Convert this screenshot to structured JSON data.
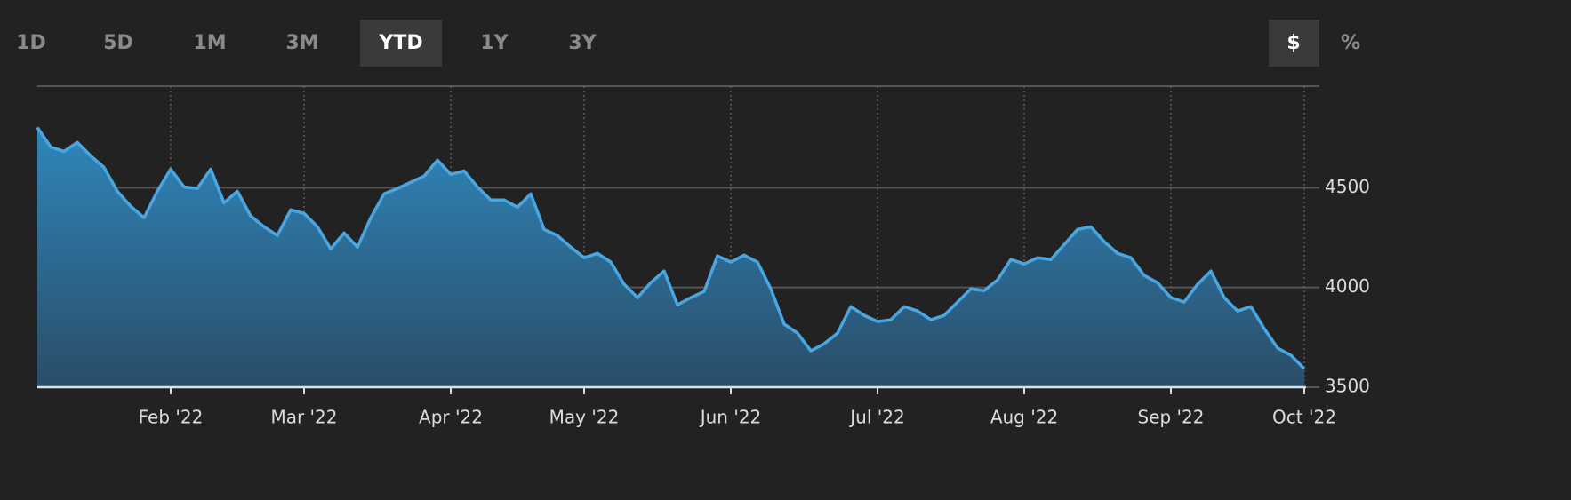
{
  "ui": {
    "range_buttons": [
      "1D",
      "5D",
      "1M",
      "3M",
      "YTD",
      "1Y",
      "3Y"
    ],
    "selected_range": 4,
    "unit_buttons": [
      "$",
      "%"
    ],
    "selected_unit": 0
  },
  "chart_data": {
    "type": "area",
    "color": "#49a6e0",
    "grid": true,
    "ylim": [
      3500,
      5000
    ],
    "yticks": [
      3500,
      4000,
      4500
    ],
    "categories": [
      null,
      null,
      null,
      null,
      null,
      null,
      null,
      null,
      null,
      null,
      "Feb '22",
      null,
      null,
      null,
      null,
      null,
      null,
      null,
      null,
      null,
      "Mar '22",
      null,
      null,
      null,
      null,
      null,
      null,
      null,
      null,
      null,
      null,
      "Apr '22",
      null,
      null,
      null,
      null,
      null,
      null,
      null,
      null,
      null,
      "May '22",
      null,
      null,
      null,
      null,
      null,
      null,
      null,
      null,
      null,
      null,
      "Jun '22",
      null,
      null,
      null,
      null,
      null,
      null,
      null,
      null,
      null,
      null,
      "Jul '22",
      null,
      null,
      null,
      null,
      null,
      null,
      null,
      null,
      null,
      null,
      "Aug '22",
      null,
      null,
      null,
      null,
      null,
      null,
      null,
      null,
      null,
      null,
      "Sep '22",
      null,
      null,
      null,
      null,
      null,
      null,
      null,
      null,
      null,
      "Oct '22"
    ],
    "values": [
      4802,
      4704,
      4682,
      4727,
      4660,
      4602,
      4482,
      4407,
      4349,
      4482,
      4593,
      4504,
      4496,
      4593,
      4424,
      4482,
      4358,
      4304,
      4260,
      4389,
      4371,
      4304,
      4193,
      4273,
      4202,
      4349,
      4469,
      4496,
      4527,
      4558,
      4638,
      4567,
      4584,
      4504,
      4438,
      4438,
      4402,
      4469,
      4291,
      4260,
      4202,
      4149,
      4171,
      4127,
      4016,
      3949,
      4024,
      4082,
      3913,
      3949,
      3980,
      4158,
      4127,
      4162,
      4127,
      3993,
      3816,
      3771,
      3682,
      3718,
      3771,
      3904,
      3860,
      3829,
      3838,
      3904,
      3882,
      3838,
      3860,
      3927,
      3993,
      3984,
      4038,
      4140,
      4118,
      4149,
      4140,
      4215,
      4291,
      4304,
      4229,
      4171,
      4149,
      4060,
      4024,
      3949,
      3927,
      4016,
      4082,
      3949,
      3882,
      3904,
      3793,
      3696,
      3660,
      3593
    ]
  }
}
